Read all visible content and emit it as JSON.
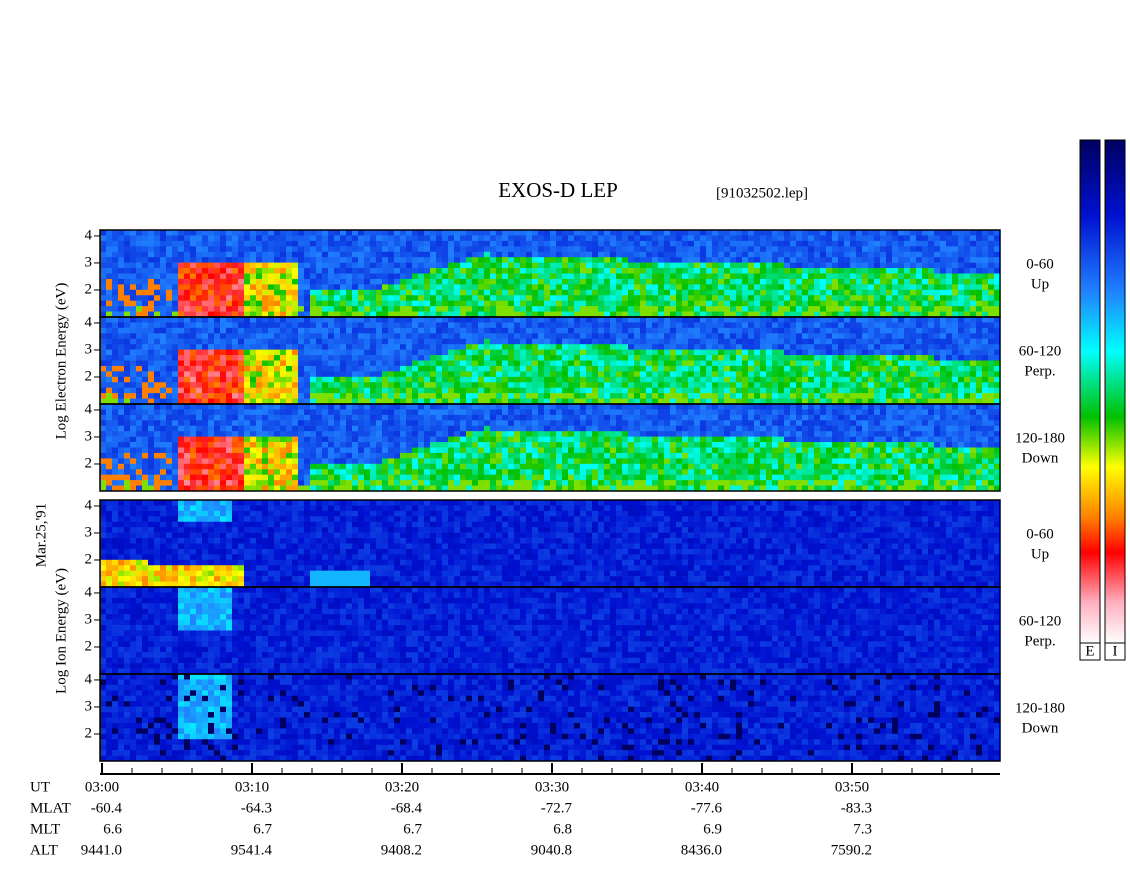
{
  "title": "EXOS-D LEP",
  "file": "[91032502.lep]",
  "date": "Mar.25,'91",
  "species": [
    {
      "label": "Log Electron Energy (eV)",
      "panels": [
        {
          "range": "0-60",
          "direction": "Up"
        },
        {
          "range": "60-120",
          "direction": "Perp."
        },
        {
          "range": "120-180",
          "direction": "Down"
        }
      ]
    },
    {
      "label": "Log Ion Energy (eV)",
      "panels": [
        {
          "range": "0-60",
          "direction": "Up"
        },
        {
          "range": "60-120",
          "direction": "Perp."
        },
        {
          "range": "120-180",
          "direction": "Down"
        }
      ]
    }
  ],
  "ylim": [
    1,
    4.22
  ],
  "yticks": [
    2,
    3,
    4
  ],
  "xlim": [
    0,
    60
  ],
  "xticks": [
    {
      "value": 0,
      "label": "03:00"
    },
    {
      "value": 10,
      "label": "03:10"
    },
    {
      "value": 20,
      "label": "03:20"
    },
    {
      "value": 30,
      "label": "03:30"
    },
    {
      "value": 40,
      "label": "03:40"
    },
    {
      "value": 50,
      "label": "03:50"
    }
  ],
  "ephemeris": {
    "names": [
      "UT",
      "MLAT",
      "MLT",
      "ALT"
    ],
    "rows": [
      [
        "-60.4",
        "-64.3",
        "-68.4",
        "-72.7",
        "-77.6",
        "-83.3"
      ],
      [
        "6.6",
        "6.7",
        "6.7",
        "6.8",
        "6.9",
        "7.3"
      ],
      [
        "9441.0",
        "9541.4",
        "9408.2",
        "9040.8",
        "8436.0",
        "7590.2"
      ]
    ]
  },
  "colorbar_labels": [
    "E",
    "I"
  ]
}
